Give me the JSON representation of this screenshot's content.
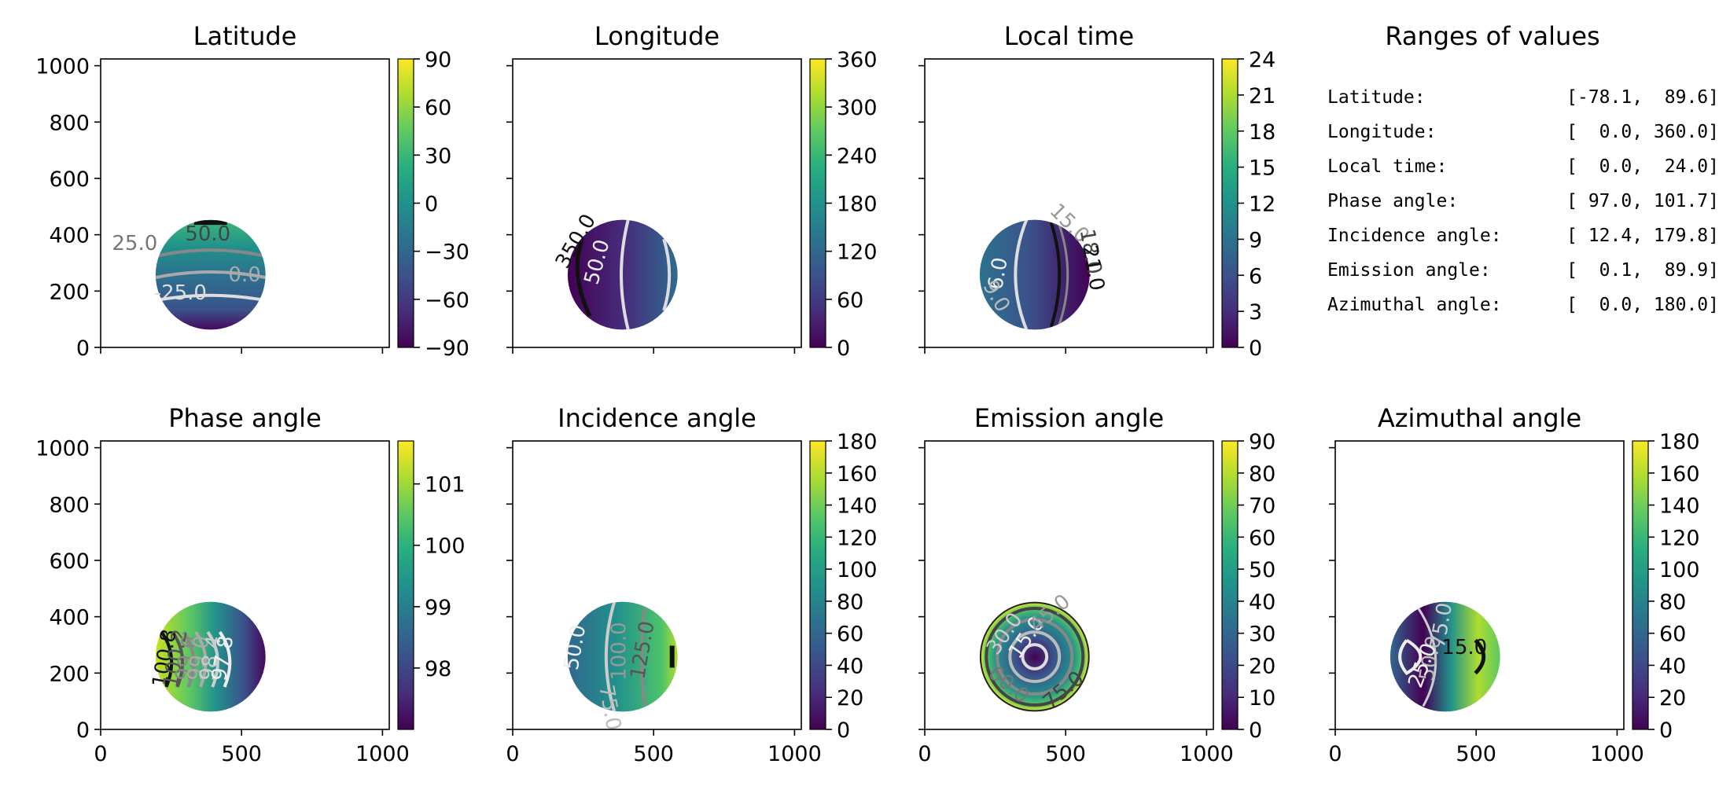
{
  "chart_data": [
    {
      "type": "heatmap",
      "title": "Latitude",
      "colorbar": {
        "range": [
          -90,
          90
        ],
        "ticks": [
          -90,
          -60,
          -30,
          0,
          30,
          60,
          90
        ]
      },
      "xlim": [
        0,
        1024
      ],
      "ylim": [
        0,
        1024
      ],
      "xticks": [
        0,
        500,
        1000
      ],
      "yticks": [
        0,
        200,
        400,
        600,
        800,
        1000
      ],
      "show_xtick_labels": false,
      "show_ytick_labels": true,
      "disk": {
        "cx": 390,
        "cy": 258,
        "r": 195
      },
      "value_range": [
        -78.1,
        89.6
      ],
      "contours": [
        "50.0",
        "25.0",
        "0.0",
        "-25.0"
      ]
    },
    {
      "type": "heatmap",
      "title": "Longitude",
      "colorbar": {
        "range": [
          0,
          360
        ],
        "ticks": [
          0,
          60,
          120,
          180,
          240,
          300,
          360
        ]
      },
      "xlim": [
        0,
        1024
      ],
      "ylim": [
        0,
        1024
      ],
      "xticks": [
        0,
        500,
        1000
      ],
      "yticks": [
        0,
        200,
        400,
        600,
        800,
        1000
      ],
      "show_xtick_labels": false,
      "show_ytick_labels": false,
      "disk": {
        "cx": 390,
        "cy": 258,
        "r": 195
      },
      "value_range": [
        0.0,
        360.0
      ],
      "contours": [
        "50.0",
        "350.0"
      ]
    },
    {
      "type": "heatmap",
      "title": "Local time",
      "colorbar": {
        "range": [
          0,
          24
        ],
        "ticks": [
          0,
          3,
          6,
          9,
          12,
          15,
          18,
          21,
          24
        ]
      },
      "xlim": [
        0,
        1024
      ],
      "ylim": [
        0,
        1024
      ],
      "xticks": [
        0,
        500,
        1000
      ],
      "yticks": [
        0,
        200,
        400,
        600,
        800,
        1000
      ],
      "show_xtick_labels": false,
      "show_ytick_labels": false,
      "disk": {
        "cx": 390,
        "cy": 258,
        "r": 195
      },
      "value_range": [
        0.0,
        24.0
      ],
      "contours": [
        "6.0",
        "9.0",
        "15.0",
        "18.0",
        "21.0"
      ]
    },
    {
      "type": "heatmap",
      "title": "Phase angle",
      "colorbar": {
        "range": [
          97.0,
          101.7
        ],
        "ticks": [
          98,
          99,
          100,
          101
        ]
      },
      "xlim": [
        0,
        1024
      ],
      "ylim": [
        0,
        1024
      ],
      "xticks": [
        0,
        500,
        1000
      ],
      "yticks": [
        0,
        200,
        400,
        600,
        800,
        1000
      ],
      "show_xtick_labels": true,
      "show_ytick_labels": true,
      "disk": {
        "cx": 390,
        "cy": 258,
        "r": 195
      },
      "value_range": [
        97.0,
        101.7
      ],
      "contours": [
        "100.8",
        "100.2",
        "99.6",
        "99.0",
        "98.4",
        "97.8"
      ]
    },
    {
      "type": "heatmap",
      "title": "Incidence angle",
      "colorbar": {
        "range": [
          0,
          180
        ],
        "ticks": [
          0,
          20,
          40,
          60,
          80,
          100,
          120,
          140,
          160,
          180
        ]
      },
      "xlim": [
        0,
        1024
      ],
      "ylim": [
        0,
        1024
      ],
      "xticks": [
        0,
        500,
        1000
      ],
      "yticks": [
        0,
        200,
        400,
        600,
        800,
        1000
      ],
      "show_xtick_labels": true,
      "show_ytick_labels": false,
      "disk": {
        "cx": 390,
        "cy": 258,
        "r": 195
      },
      "value_range": [
        12.4,
        179.8
      ],
      "contours": [
        "50.0",
        "75.0",
        "100.0",
        "125.0"
      ]
    },
    {
      "type": "heatmap",
      "title": "Emission angle",
      "colorbar": {
        "range": [
          0,
          90
        ],
        "ticks": [
          0,
          10,
          20,
          30,
          40,
          50,
          60,
          70,
          80,
          90
        ]
      },
      "xlim": [
        0,
        1024
      ],
      "ylim": [
        0,
        1024
      ],
      "xticks": [
        0,
        500,
        1000
      ],
      "yticks": [
        0,
        200,
        400,
        600,
        800,
        1000
      ],
      "show_xtick_labels": true,
      "show_ytick_labels": false,
      "disk": {
        "cx": 390,
        "cy": 258,
        "r": 195
      },
      "value_range": [
        0.1,
        89.9
      ],
      "contours": [
        "15.0",
        "30.0",
        "45.0",
        "60.0",
        "75.0"
      ]
    },
    {
      "type": "heatmap",
      "title": "Azimuthal angle",
      "colorbar": {
        "range": [
          0,
          180
        ],
        "ticks": [
          0,
          20,
          40,
          60,
          80,
          100,
          120,
          140,
          160,
          180
        ]
      },
      "xlim": [
        0,
        1024
      ],
      "ylim": [
        0,
        1024
      ],
      "xticks": [
        0,
        500,
        1000
      ],
      "yticks": [
        0,
        200,
        400,
        600,
        800,
        1000
      ],
      "show_xtick_labels": true,
      "show_ytick_labels": false,
      "disk": {
        "cx": 390,
        "cy": 258,
        "r": 195
      },
      "value_range": [
        0.0,
        180.0
      ],
      "contours": [
        "75.0",
        "50.0",
        "25.0",
        "15.0"
      ]
    }
  ],
  "ranges_panel": {
    "title": "Ranges of values",
    "rows": [
      {
        "label": "Latitude:",
        "value": "[-78.1,  89.6]"
      },
      {
        "label": "Longitude:",
        "value": "[  0.0, 360.0]"
      },
      {
        "label": "Local time:",
        "value": "[  0.0,  24.0]"
      },
      {
        "label": "Phase angle:",
        "value": "[ 97.0, 101.7]"
      },
      {
        "label": "Incidence angle:",
        "value": "[ 12.4, 179.8]"
      },
      {
        "label": "Emission angle:",
        "value": "[  0.1,  89.9]"
      },
      {
        "label": "Azimuthal angle:",
        "value": "[  0.0, 180.0]"
      }
    ]
  }
}
